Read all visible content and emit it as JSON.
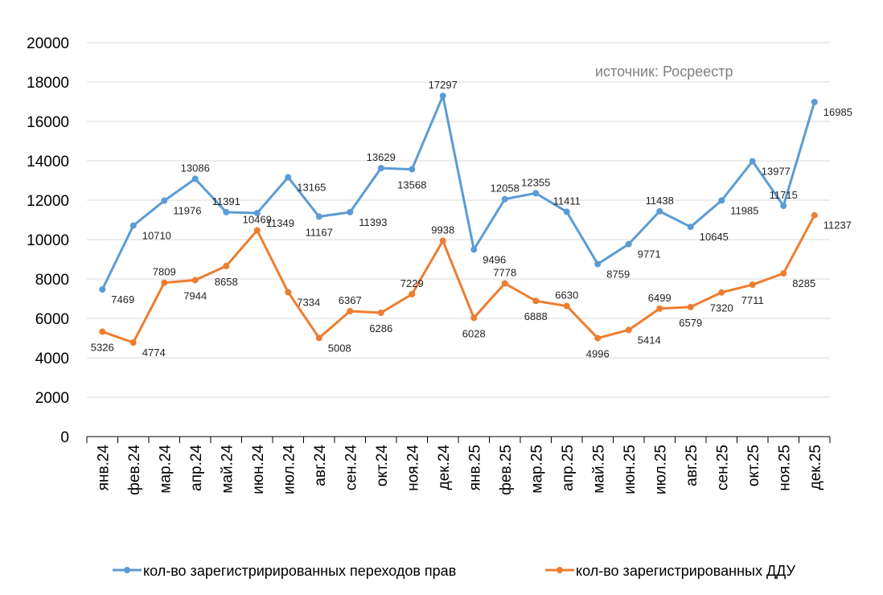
{
  "chart_data": {
    "type": "line",
    "annotation": "источник: Росреестр",
    "categories": [
      "янв.24",
      "фев.24",
      "мар.24",
      "апр.24",
      "май.24",
      "июн.24",
      "июл.24",
      "авг.24",
      "сен.24",
      "окт.24",
      "ноя.24",
      "дек.24",
      "янв.25",
      "фев.25",
      "мар.25",
      "апр.25",
      "май.25",
      "июн.25",
      "июл.25",
      "авг.25",
      "сен.25",
      "окт.25",
      "ноя.25",
      "дек.25"
    ],
    "ylim": [
      0,
      20000
    ],
    "yticks": [
      0,
      2000,
      4000,
      6000,
      8000,
      10000,
      12000,
      14000,
      16000,
      18000,
      20000
    ],
    "grid": true,
    "legend_position": "bottom",
    "series": [
      {
        "name": "кол-во зарегистрирированных переходов прав",
        "color": "#5B9BD5",
        "values": [
          7469,
          10710,
          11976,
          13086,
          11391,
          11349,
          13165,
          11167,
          11393,
          13629,
          13568,
          17297,
          9496,
          12058,
          12355,
          11411,
          8759,
          9771,
          11438,
          10645,
          11985,
          13977,
          11715,
          16985
        ]
      },
      {
        "name": "кол-во зарегистрированных ДДУ",
        "color": "#ED7D31",
        "values": [
          5326,
          4774,
          7809,
          7944,
          8658,
          10469,
          7334,
          5008,
          6367,
          6286,
          7229,
          9938,
          6028,
          7778,
          6888,
          6630,
          4996,
          5414,
          6499,
          6579,
          7320,
          7711,
          8285,
          11237
        ]
      }
    ]
  }
}
